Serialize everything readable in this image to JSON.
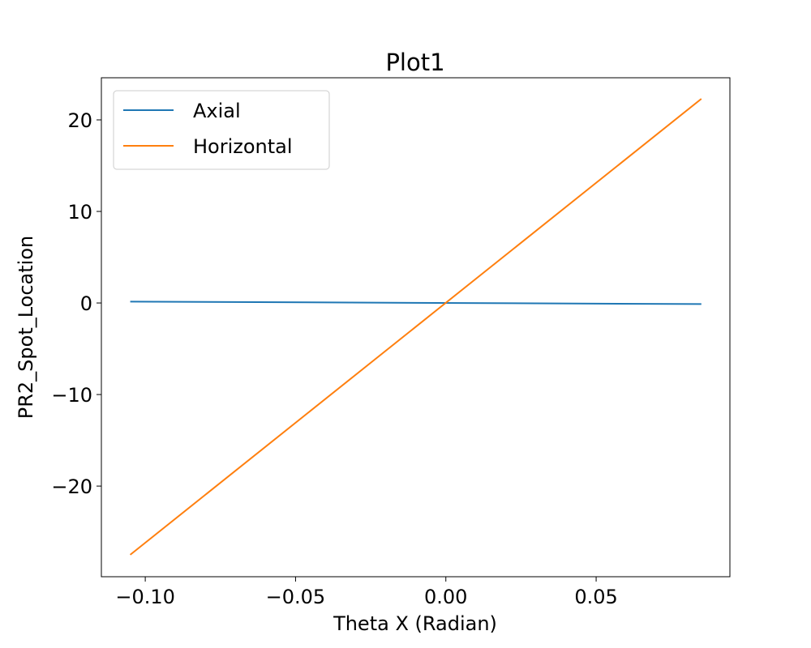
{
  "chart_data": {
    "type": "line",
    "title": "Plot1",
    "xlabel": "Theta X (Radian)",
    "ylabel": "PR2_Spot_Location",
    "xlim": [
      -0.1146,
      0.0945
    ],
    "ylim": [
      -29.9,
      24.6
    ],
    "xticks": [
      -0.1,
      -0.05,
      0.0,
      0.05
    ],
    "xtick_labels": [
      "−0.10",
      "−0.05",
      "0.00",
      "0.05"
    ],
    "yticks": [
      -20,
      -10,
      0,
      10,
      20
    ],
    "ytick_labels": [
      "−20",
      "−10",
      "0",
      "10",
      "20"
    ],
    "grid": false,
    "legend_position": "upper-left",
    "series": [
      {
        "name": "Axial",
        "color": "#1f77b4",
        "x": [
          -0.105,
          0.085
        ],
        "y": [
          0.15,
          -0.12
        ]
      },
      {
        "name": "Horizontal",
        "color": "#ff7f0e",
        "x": [
          -0.105,
          0.085
        ],
        "y": [
          -27.5,
          22.3
        ]
      }
    ]
  }
}
